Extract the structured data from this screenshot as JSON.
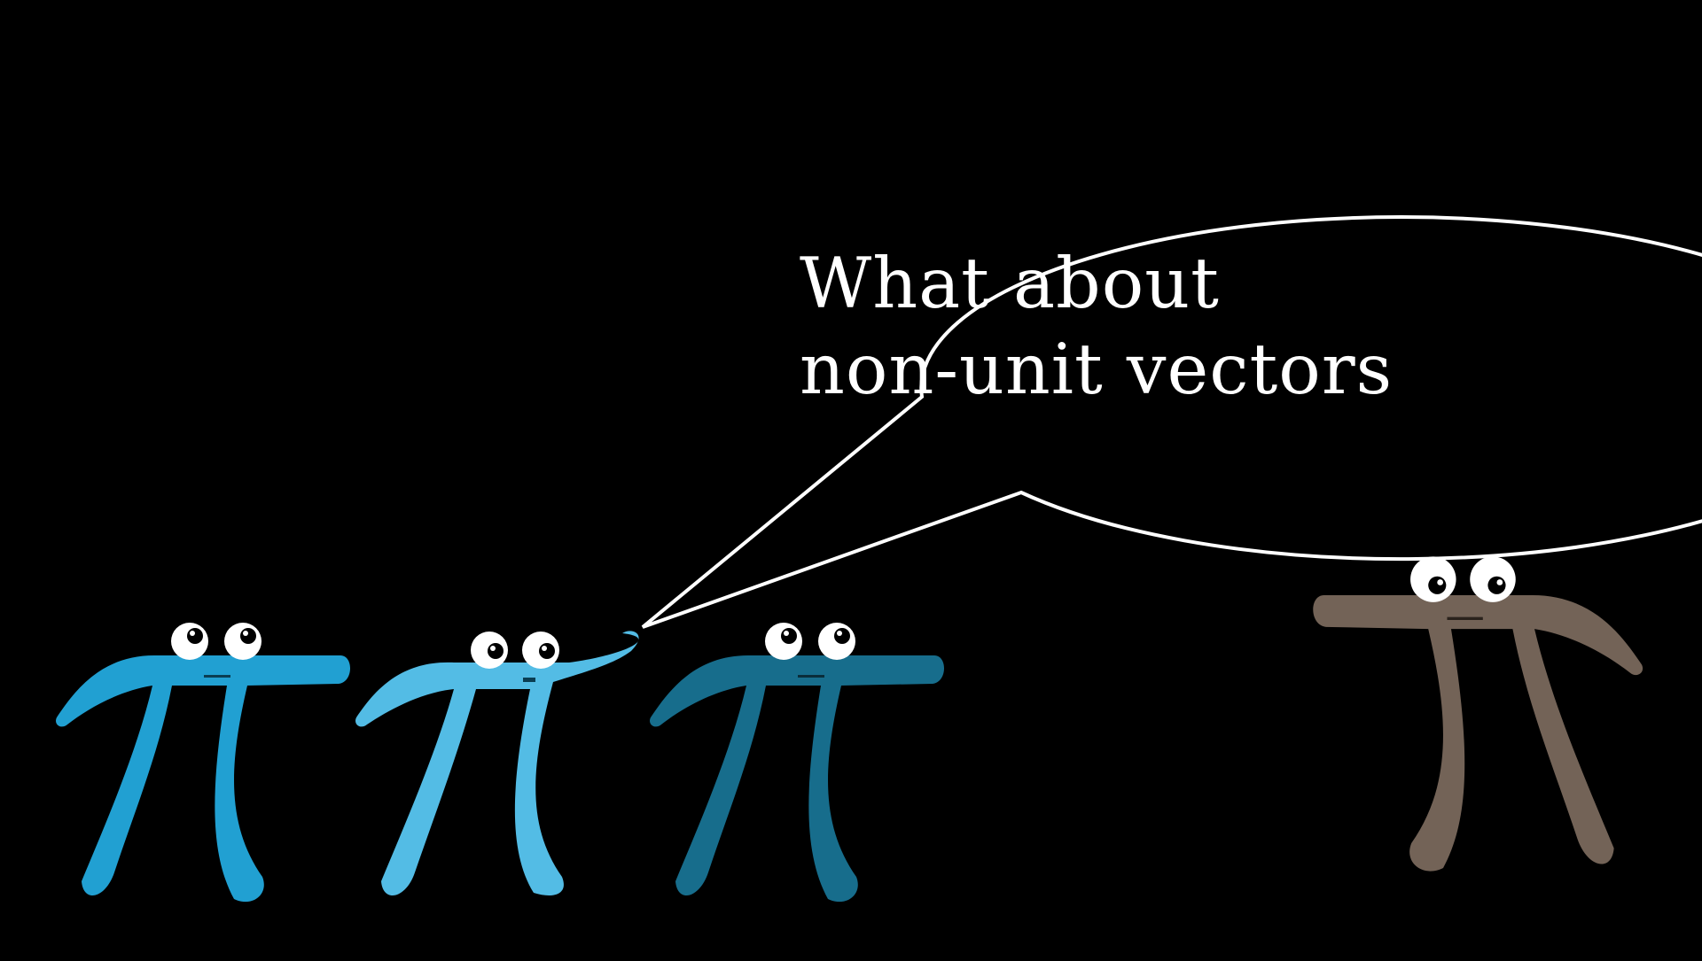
{
  "speech_bubble": {
    "line1": "What about",
    "line2": "non-unit vectors"
  },
  "characters": [
    {
      "name": "pi-creature-1",
      "color": "#21A0D2"
    },
    {
      "name": "pi-creature-2-speaking",
      "color": "#53BCE5"
    },
    {
      "name": "pi-creature-3",
      "color": "#176D8C"
    },
    {
      "name": "pi-creature-4",
      "color": "#736357"
    }
  ],
  "colors": {
    "background": "#000000",
    "bubble_stroke": "#ffffff",
    "eye_white": "#ffffff",
    "pupil": "#000000"
  }
}
